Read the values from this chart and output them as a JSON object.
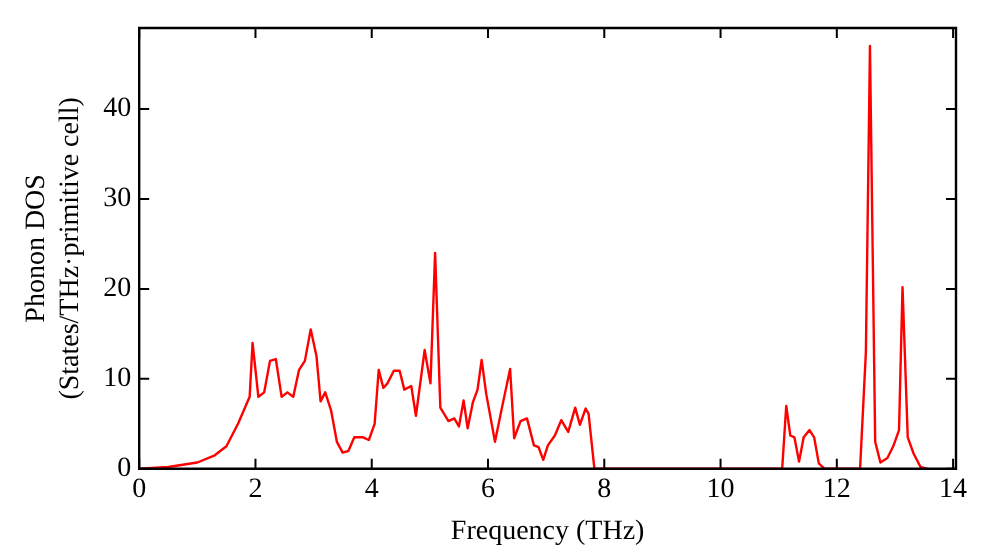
{
  "chart_data": {
    "type": "line",
    "xlabel": "Frequency (THz)",
    "ylabel": "Phonon DOS\n(States/THz·primitive cell)",
    "xlim": [
      0,
      14.05
    ],
    "ylim": [
      0,
      49
    ],
    "xticks": [
      0,
      2,
      4,
      6,
      8,
      10,
      12,
      14
    ],
    "yticks": [
      0,
      10,
      20,
      30,
      40
    ],
    "grid": false,
    "legend": false,
    "marker": "none",
    "line_style": "solid",
    "series": [
      {
        "color": "#ff0000",
        "x": [
          0,
          0.5,
          1.0,
          1.3,
          1.5,
          1.7,
          1.9,
          1.95,
          2.05,
          2.15,
          2.25,
          2.35,
          2.45,
          2.55,
          2.65,
          2.75,
          2.85,
          2.95,
          3.05,
          3.12,
          3.2,
          3.3,
          3.4,
          3.5,
          3.6,
          3.7,
          3.85,
          3.95,
          4.05,
          4.12,
          4.2,
          4.27,
          4.38,
          4.48,
          4.56,
          4.68,
          4.76,
          4.91,
          5.01,
          5.09,
          5.18,
          5.32,
          5.42,
          5.5,
          5.58,
          5.65,
          5.74,
          5.82,
          5.89,
          5.97,
          6.12,
          6.24,
          6.38,
          6.45,
          6.56,
          6.67,
          6.79,
          6.87,
          6.95,
          7.03,
          7.15,
          7.26,
          7.38,
          7.5,
          7.58,
          7.68,
          7.73,
          7.83,
          11.06,
          11.13,
          11.2,
          11.27,
          11.35,
          11.43,
          11.53,
          11.61,
          11.69,
          11.79,
          12.4,
          12.5,
          12.57,
          12.66,
          12.75,
          12.87,
          12.97,
          13.07,
          13.13,
          13.22,
          13.32,
          13.44,
          13.56
        ],
        "values": [
          0,
          0.2,
          0.7,
          1.5,
          2.5,
          5,
          8,
          14,
          8,
          8.5,
          12,
          12.2,
          8,
          8.5,
          8,
          11,
          12,
          15.5,
          12.5,
          7.5,
          8.5,
          6.5,
          3,
          1.8,
          2,
          3.5,
          3.5,
          3.2,
          5,
          11,
          9,
          9.5,
          10.9,
          10.9,
          8.8,
          9.2,
          5.9,
          13.2,
          9.5,
          24,
          6.8,
          5.3,
          5.6,
          4.7,
          7.6,
          4.5,
          7.4,
          8.8,
          12.1,
          8.3,
          3,
          6.8,
          11.1,
          3.4,
          5.3,
          5.6,
          2.6,
          2.4,
          1,
          2.6,
          3.7,
          5.4,
          4.1,
          6.8,
          4.9,
          6.7,
          6.1,
          0,
          0,
          7,
          3.7,
          3.5,
          0.8,
          3.5,
          4.3,
          3.5,
          0.6,
          0,
          0,
          13,
          47,
          3,
          0.7,
          1.2,
          2.5,
          4.3,
          20.2,
          3.5,
          1.7,
          0.2,
          0
        ]
      }
    ]
  }
}
